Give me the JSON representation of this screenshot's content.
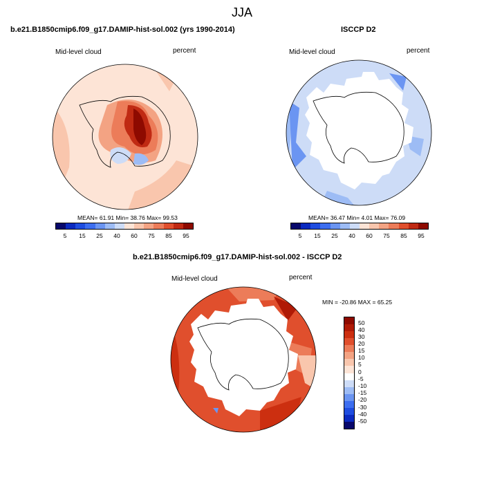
{
  "page": {
    "title": "JJA"
  },
  "panels": [
    {
      "title": "b.e21.B1850cmip6.f09_g17.DAMIP-hist-sol.002 (yrs 1990-2014)",
      "left_label": "Mid-level cloud",
      "right_label": "percent",
      "stats": "MEAN=  61.91   Min=  38.76   Max=  99.53",
      "colorbar_ticks": [
        "5",
        "15",
        "25",
        "40",
        "60",
        "75",
        "85",
        "95"
      ]
    },
    {
      "title": "ISCCP D2",
      "left_label": "Mid-level cloud",
      "right_label": "percent",
      "stats": "MEAN=  36.47   Min=   4.01   Max=  76.09",
      "colorbar_ticks": [
        "5",
        "15",
        "25",
        "40",
        "60",
        "75",
        "85",
        "95"
      ]
    }
  ],
  "diff": {
    "title": "b.e21.B1850cmip6.f09_g17.DAMIP-hist-sol.002 - ISCCP D2",
    "left_label": "Mid-level cloud",
    "right_label": "percent",
    "minmax": "MIN = -20.86 MAX =  65.25",
    "colorbar_labels": [
      "50",
      "40",
      "30",
      "20",
      "15",
      "10",
      "5",
      "0",
      "-5",
      "-10",
      "-15",
      "-20",
      "-30",
      "-40",
      "-50"
    ]
  },
  "colors": {
    "abs_scale": [
      "#08086b",
      "#0b2ac0",
      "#1f4de0",
      "#3d6ef0",
      "#6b95f2",
      "#9dbcf5",
      "#cddcf7",
      "#fde4d6",
      "#f9c6ad",
      "#f3a383",
      "#ec7c59",
      "#e04f2d",
      "#c02a13",
      "#8e0a00"
    ],
    "diff_scale": [
      "#8e0a00",
      "#b01a06",
      "#cc2f10",
      "#e04f2d",
      "#ec7c59",
      "#f3a383",
      "#f9c6ad",
      "#fde4d6",
      "#cddcf7",
      "#9dbcf5",
      "#6b95f2",
      "#3d6ef0",
      "#1f4de0",
      "#0b2ac0",
      "#08086b"
    ]
  }
}
